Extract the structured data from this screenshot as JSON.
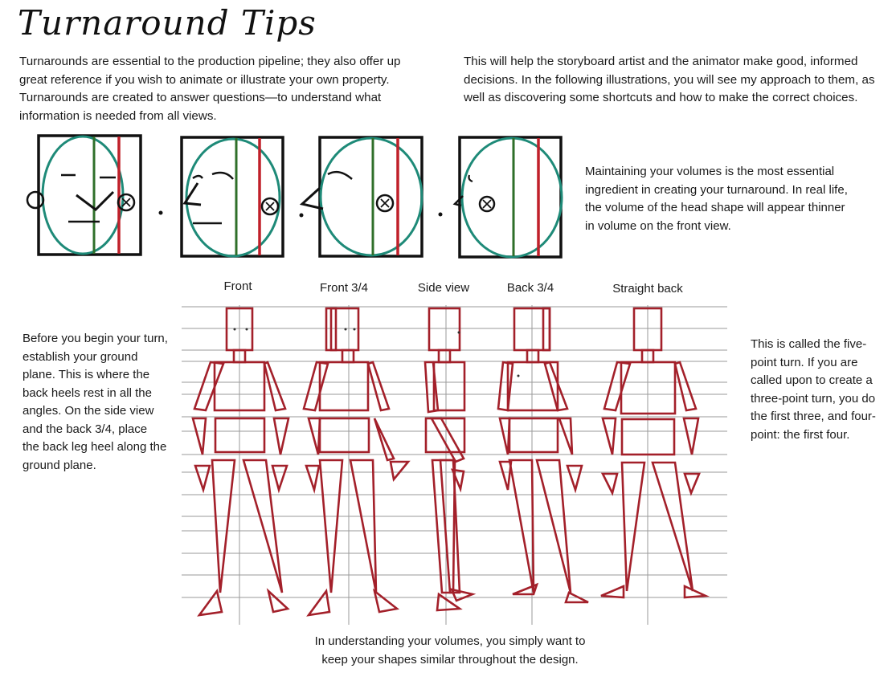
{
  "page": {
    "title": "Turnaround Tips",
    "intro_left": [
      "Turnarounds are essential to the production pipeline; they also offer up",
      "great reference if you wish to animate or illustrate your own property.",
      "Turnarounds are created to answer questions—to understand what",
      "information is needed from all views."
    ],
    "intro_right": [
      "This will help the storyboard artist and the animator make good, informed",
      "decisions. In the following illustrations, you will see my approach to them, as",
      "well as discovering some shortcuts and how to make the correct choices."
    ],
    "volumes_note": [
      "Maintaining your volumes is the most essential",
      "ingredient in creating your turnaround. In real life,",
      "the volume of the head shape will appear thinner",
      "in volume on the front view."
    ],
    "ground_note": [
      "Before you begin your turn,",
      "establish your ground",
      "plane. This is where the",
      "back heels rest in all the",
      "angles. On the side view",
      "and the back 3/4, place",
      "the back leg heel along the",
      "ground plane."
    ],
    "fivepoint_note": [
      "This is called the five-",
      "point turn. If you are",
      "called upon to create a",
      "three-point turn, you do",
      "the first three, and four-",
      "point: the first four."
    ],
    "bottom_note": [
      "In understanding your volumes, you simply want to",
      "keep your shapes similar throughout the design."
    ]
  },
  "views": [
    "Front",
    "Front 3/4",
    "Side view",
    "Back 3/4",
    "Straight back"
  ],
  "colors": {
    "frame": "#111111",
    "head_oval": "#1e8a78",
    "center_line": "#2f6f2a",
    "side_line": "#c0202a",
    "figure": "#a3202a",
    "grid": "#9a9a9a"
  }
}
